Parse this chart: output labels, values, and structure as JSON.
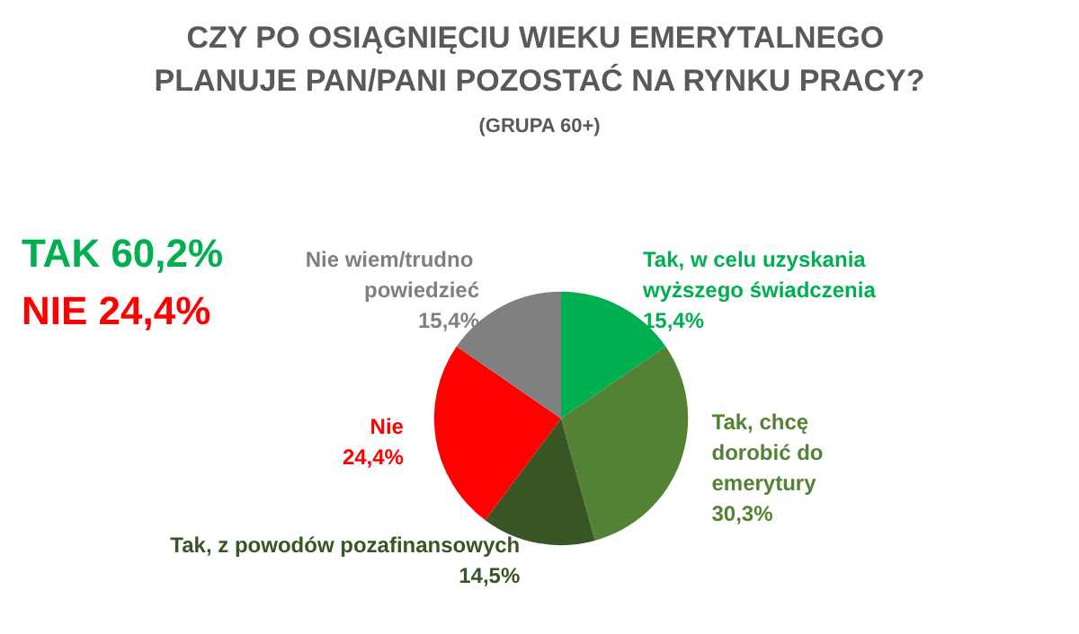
{
  "chart_data": {
    "type": "pie",
    "title": "CZY PO OSIĄGNIĘCIU WIEKU EMERYTALNEGO PLANUJE PAN/PANI POZOSTAĆ NA RYNKU PRACY?",
    "subtitle": "(GRUPA 60+)",
    "categories": [
      "Tak, w celu uzyskania wyższego świadczenia",
      "Tak, chcę dorobić do emerytury",
      "Tak, z powodów pozafinansowych",
      "Nie",
      "Nie wiem/trudno powiedzieć"
    ],
    "values": [
      15.4,
      30.3,
      14.5,
      24.4,
      15.4
    ],
    "value_labels": [
      "15,4%",
      "30,3%",
      "14,5%",
      "24,4%",
      "15,4%"
    ],
    "colors": [
      "#00b050",
      "#548235",
      "#375623",
      "#ff0000",
      "#808080"
    ],
    "annotations": [
      "TAK 60,2%",
      "NIE 24,4%"
    ],
    "legend": false
  }
}
